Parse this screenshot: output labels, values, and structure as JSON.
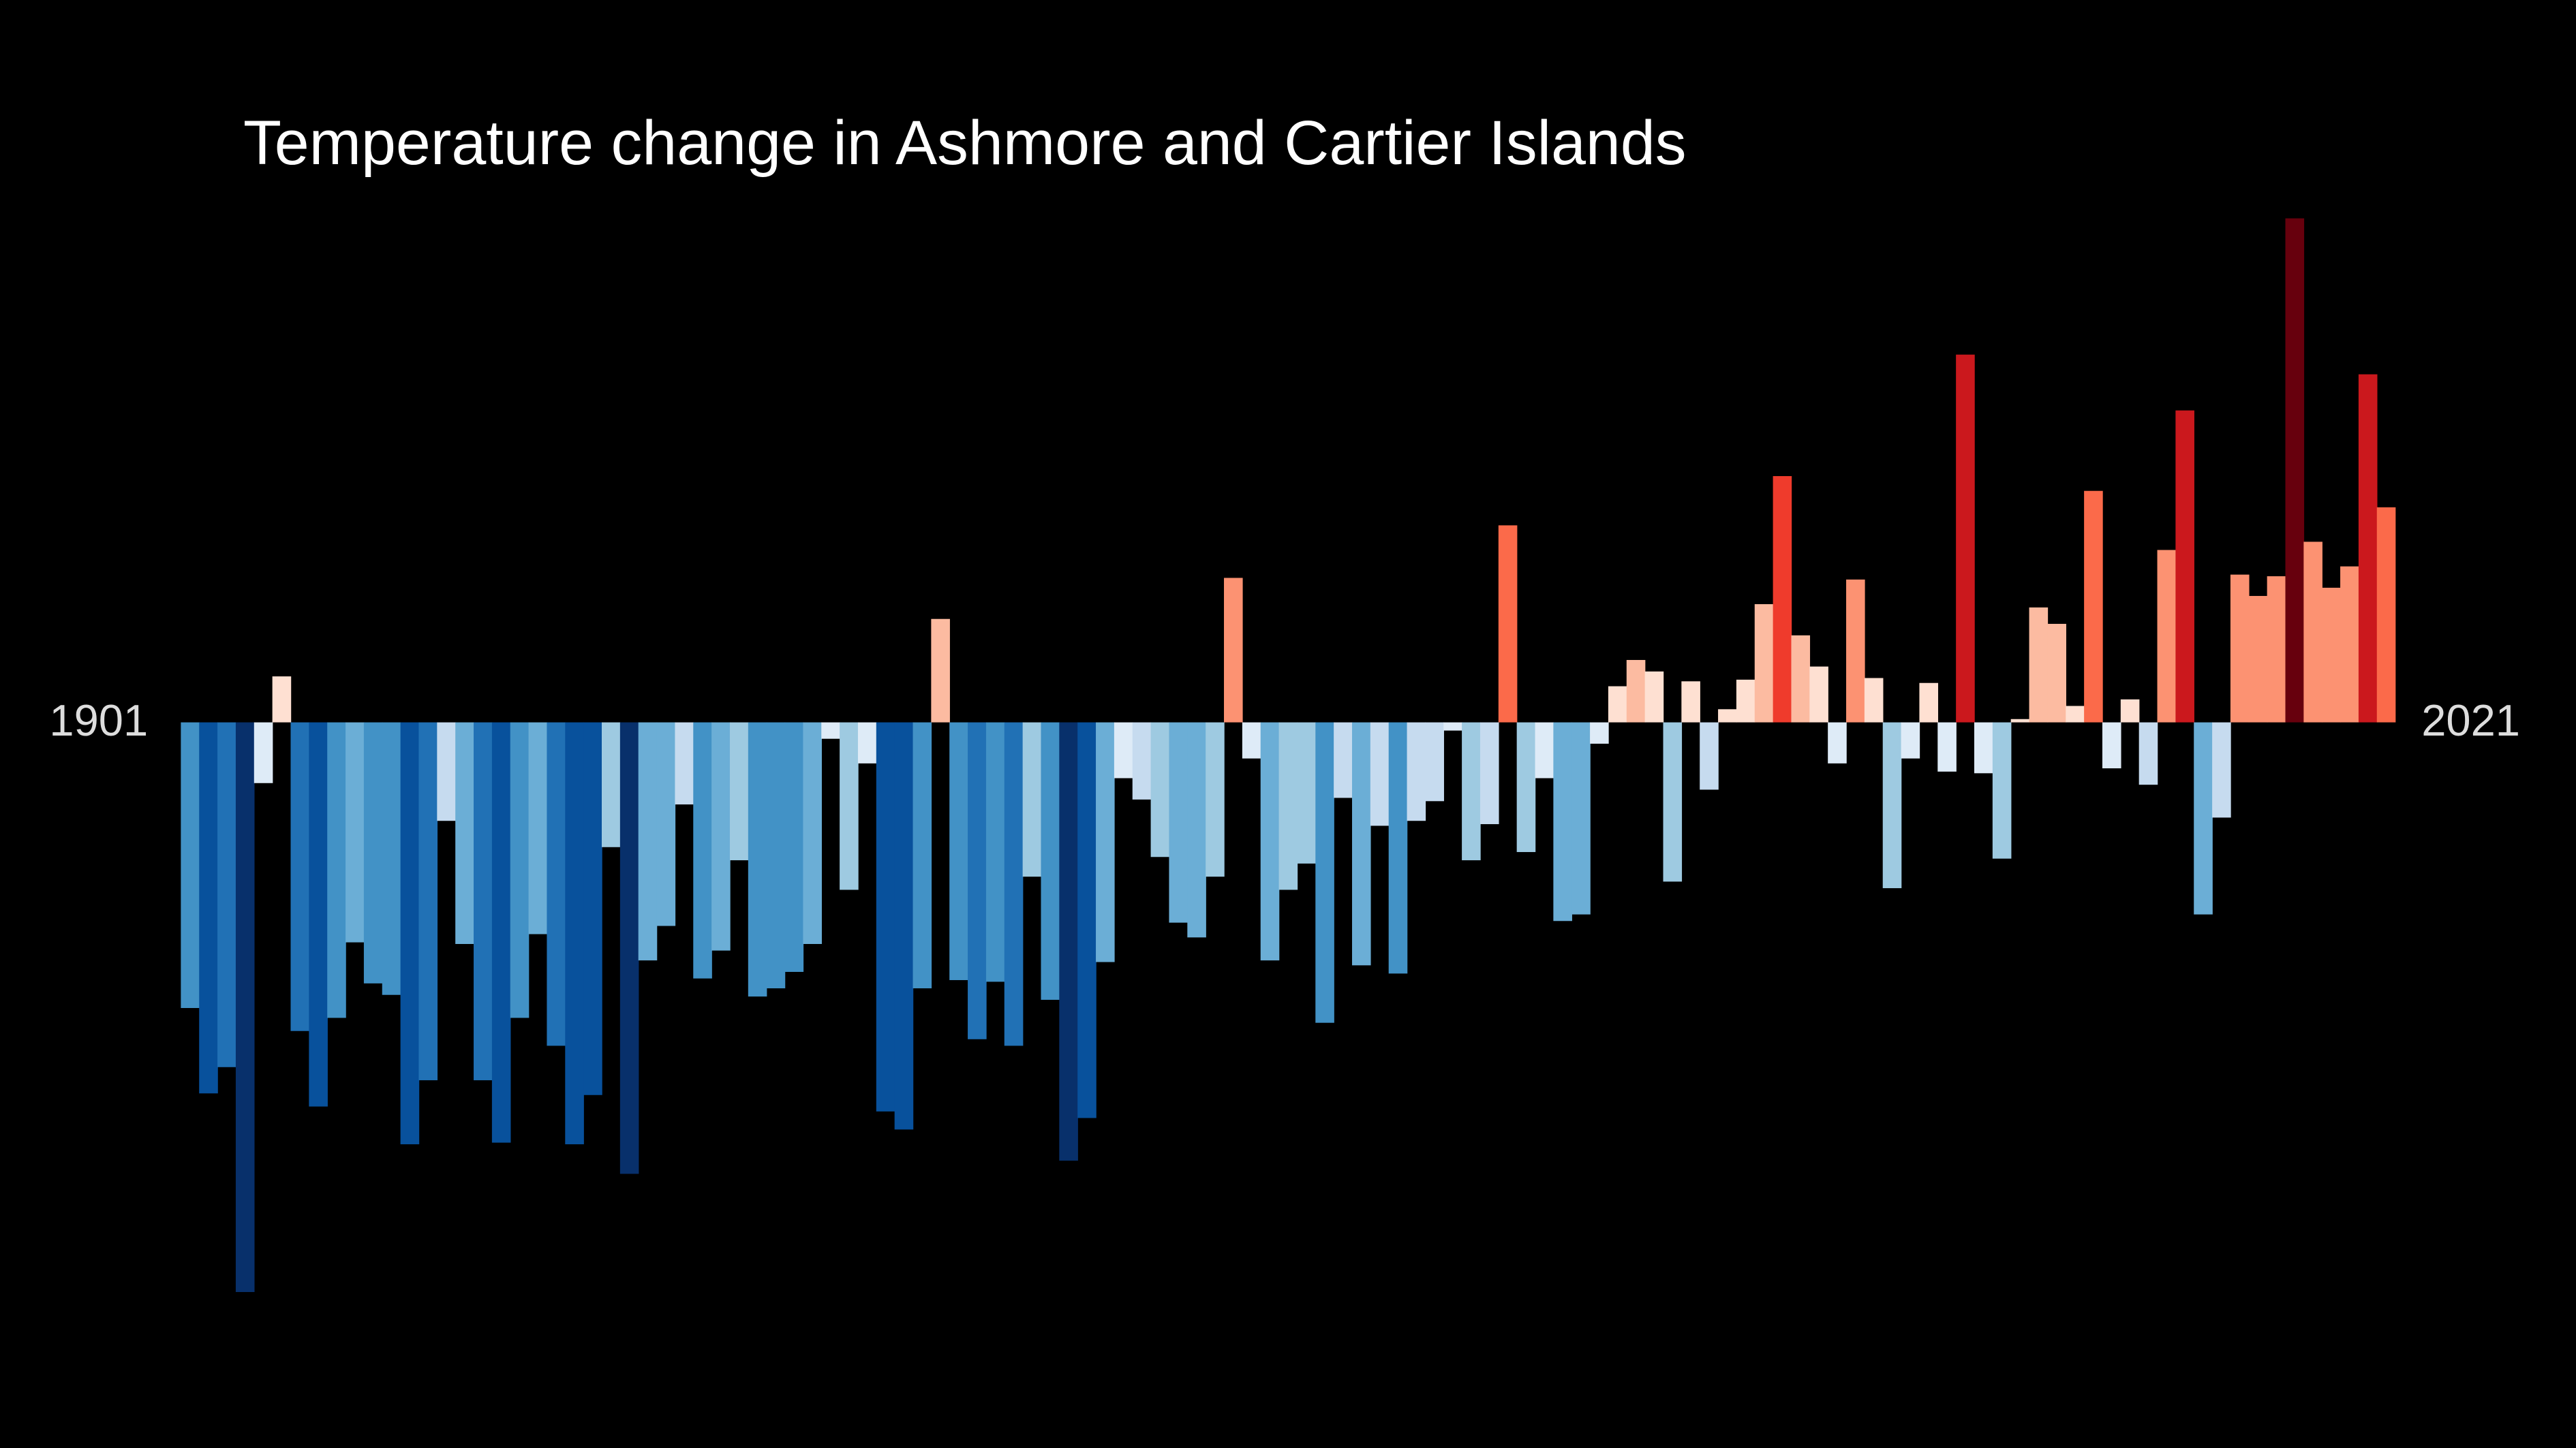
{
  "chart_data": {
    "type": "bar",
    "title": "Temperature change in Ashmore and Cartier Islands",
    "xlim": [
      1901,
      2021
    ],
    "ylim": [
      -0.75,
      0.7
    ],
    "clim": [
      -0.6,
      0.6
    ],
    "color_scale": [
      "#08306b",
      "#08519c",
      "#2171b5",
      "#4292c6",
      "#6baed6",
      "#9ecae1",
      "#c6dbef",
      "#deebf7",
      "#fee0d2",
      "#fcbba1",
      "#fc9272",
      "#fb6a4a",
      "#ef3b2c",
      "#cb181d",
      "#a50f15",
      "#67000d"
    ],
    "values": [
      -0.348,
      -0.452,
      -0.42,
      -0.694,
      -0.074,
      0.056,
      -0.376,
      -0.468,
      -0.36,
      -0.268,
      -0.318,
      -0.332,
      -0.514,
      -0.436,
      -0.12,
      -0.27,
      -0.436,
      -0.512,
      -0.36,
      -0.258,
      -0.394,
      -0.514,
      -0.454,
      -0.152,
      -0.55,
      -0.29,
      -0.248,
      -0.1,
      -0.312,
      -0.278,
      -0.168,
      -0.334,
      -0.324,
      -0.304,
      -0.27,
      -0.02,
      -0.204,
      -0.05,
      -0.474,
      -0.496,
      -0.324,
      0.126,
      -0.314,
      -0.386,
      -0.316,
      -0.394,
      -0.188,
      -0.338,
      -0.534,
      -0.482,
      -0.292,
      -0.068,
      -0.094,
      -0.164,
      -0.244,
      -0.262,
      -0.188,
      0.176,
      -0.044,
      -0.29,
      -0.204,
      -0.172,
      -0.366,
      -0.092,
      -0.296,
      -0.126,
      -0.306,
      -0.12,
      -0.096,
      -0.01,
      -0.168,
      -0.124,
      0.24,
      -0.158,
      -0.068,
      -0.242,
      -0.234,
      -0.026,
      0.044,
      0.076,
      0.062,
      -0.194,
      0.05,
      -0.082,
      0.016,
      0.052,
      0.144,
      0.3,
      0.106,
      0.068,
      -0.05,
      0.174,
      0.054,
      -0.202,
      -0.044,
      0.048,
      -0.06,
      0.448,
      -0.062,
      -0.166,
      0.004,
      0.14,
      0.12,
      0.02,
      0.282,
      -0.056,
      0.028,
      -0.076,
      0.21,
      0.38,
      -0.234,
      -0.116,
      0.18,
      0.154,
      0.178,
      0.614,
      0.22,
      0.164,
      0.19,
      0.424,
      0.262
    ]
  }
}
